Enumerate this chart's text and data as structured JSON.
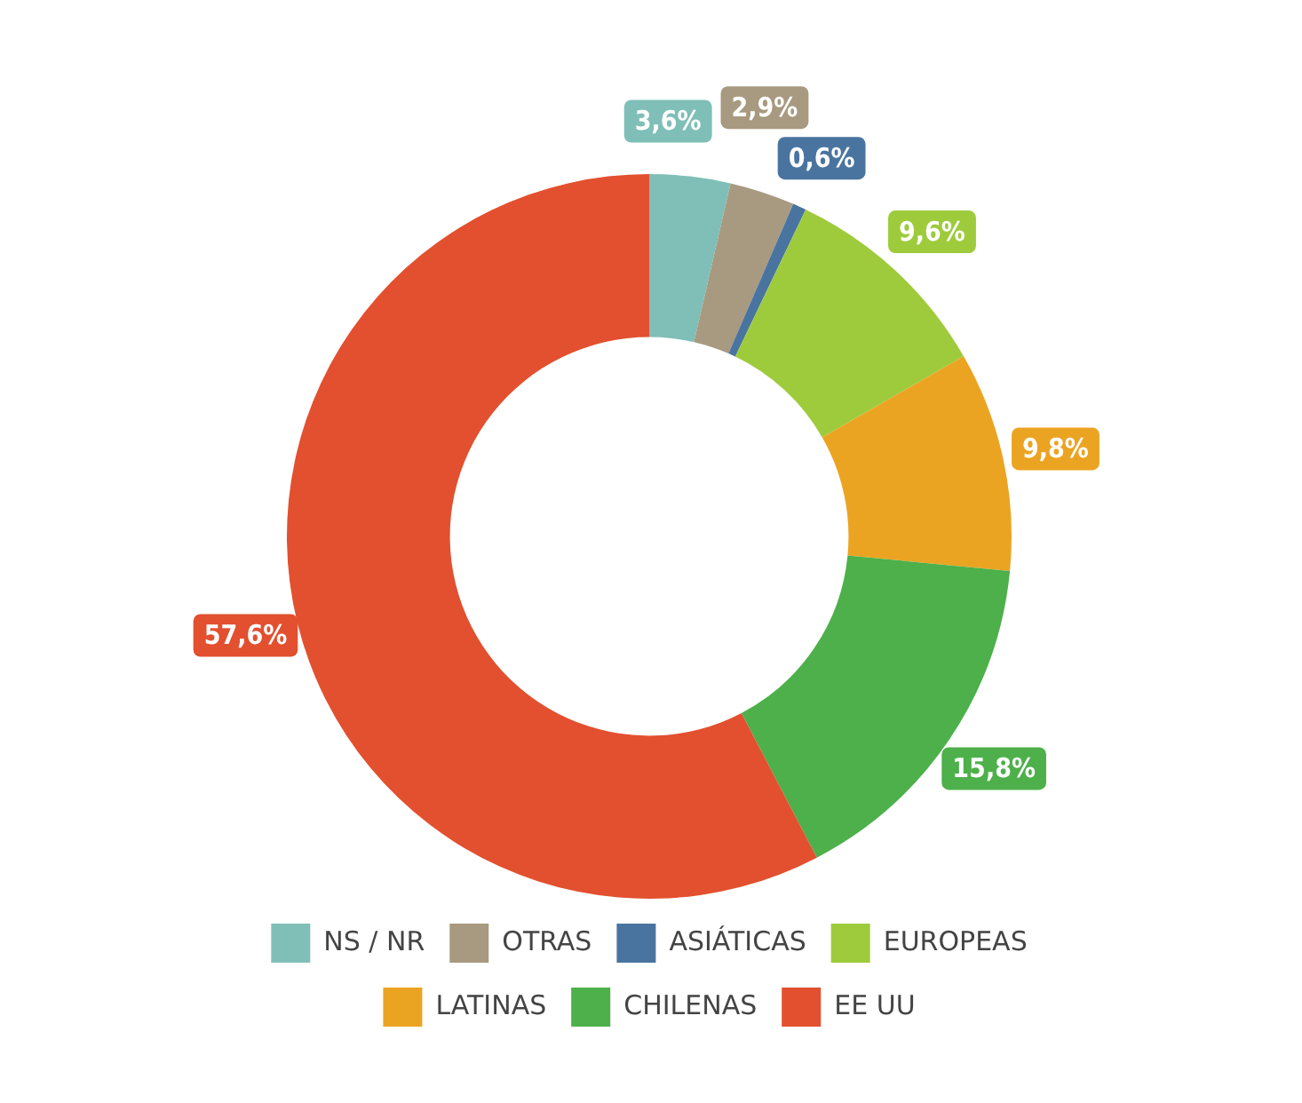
{
  "chart_data": {
    "type": "donut",
    "categories": [
      "NS / NR",
      "OTRAS",
      "ASIÁTICAS",
      "EUROPEAS",
      "LATINAS",
      "CHILENAS",
      "EE UU"
    ],
    "values": [
      3.6,
      2.9,
      0.6,
      9.6,
      9.8,
      15.8,
      57.6
    ],
    "colors": [
      "#7fbfb8",
      "#a89a80",
      "#4a74a0",
      "#9ecb3c",
      "#eba422",
      "#4db04a",
      "#e2502f"
    ],
    "value_labels": [
      "3,6%",
      "2,9%",
      "0,6%",
      "9,6%",
      "9,8%",
      "15,8%",
      "57,6%"
    ],
    "legend": "bottom"
  }
}
